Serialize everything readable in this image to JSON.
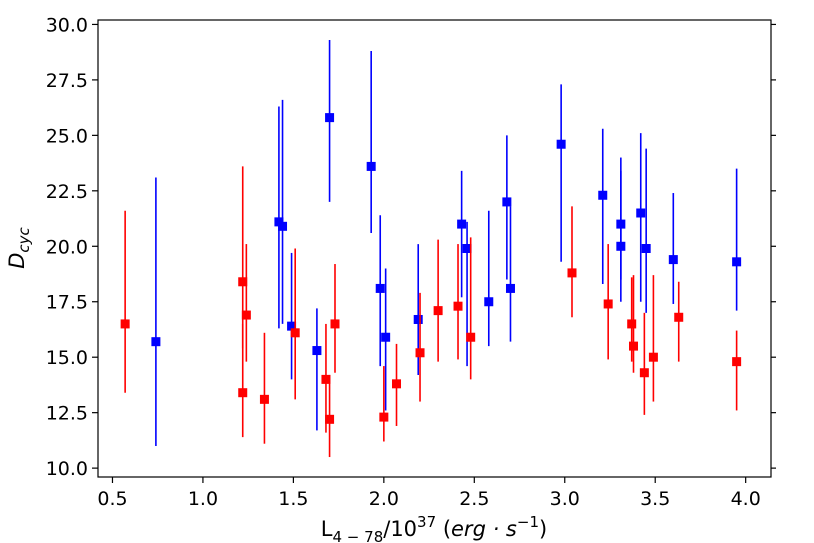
{
  "chart_data": {
    "type": "scatter",
    "xlabel": {
      "base": "L",
      "sub": "4 − 78",
      "mid": "/10",
      "sup": "37",
      "rest_open": " (",
      "italic": "erg · s",
      "sup2": "−1",
      "rest_close": ")"
    },
    "ylabel": {
      "base": "D",
      "sub": "cyc"
    },
    "xlim": [
      0.42,
      4.14
    ],
    "ylim": [
      9.6,
      30.2
    ],
    "xticks": [
      0.5,
      1.0,
      1.5,
      2.0,
      2.5,
      3.0,
      3.5,
      4.0
    ],
    "xtick_labels": [
      "0.5",
      "1.0",
      "1.5",
      "2.0",
      "2.5",
      "3.0",
      "3.5",
      "4.0"
    ],
    "yticks": [
      10.0,
      12.5,
      15.0,
      17.5,
      20.0,
      22.5,
      25.0,
      27.5,
      30.0
    ],
    "ytick_labels": [
      "10.0",
      "12.5",
      "15.0",
      "17.5",
      "20.0",
      "22.5",
      "25.0",
      "27.5",
      "30.0"
    ],
    "grid": false,
    "series": [
      {
        "color": "#0000ff",
        "points": [
          {
            "x": 0.74,
            "y": 15.7,
            "lo": 11.0,
            "hi": 23.1
          },
          {
            "x": 1.42,
            "y": 21.1,
            "lo": 16.3,
            "hi": 26.3
          },
          {
            "x": 1.44,
            "y": 20.9,
            "lo": 16.5,
            "hi": 26.6
          },
          {
            "x": 1.49,
            "y": 16.4,
            "lo": 14.0,
            "hi": 19.7
          },
          {
            "x": 1.63,
            "y": 15.3,
            "lo": 11.7,
            "hi": 17.2
          },
          {
            "x": 1.7,
            "y": 25.8,
            "lo": 22.0,
            "hi": 29.3
          },
          {
            "x": 1.93,
            "y": 23.6,
            "lo": 20.6,
            "hi": 28.8
          },
          {
            "x": 1.98,
            "y": 18.1,
            "lo": 14.6,
            "hi": 21.4
          },
          {
            "x": 2.01,
            "y": 15.9,
            "lo": 12.6,
            "hi": 19.0
          },
          {
            "x": 2.19,
            "y": 16.7,
            "lo": 14.2,
            "hi": 20.1
          },
          {
            "x": 2.43,
            "y": 21.0,
            "lo": 17.7,
            "hi": 23.4
          },
          {
            "x": 2.46,
            "y": 19.9,
            "lo": 14.6,
            "hi": 21.1
          },
          {
            "x": 2.58,
            "y": 17.5,
            "lo": 15.5,
            "hi": 21.6
          },
          {
            "x": 2.68,
            "y": 22.0,
            "lo": 18.5,
            "hi": 25.0
          },
          {
            "x": 2.7,
            "y": 18.1,
            "lo": 15.7,
            "hi": 21.8
          },
          {
            "x": 2.98,
            "y": 24.6,
            "lo": 19.3,
            "hi": 27.3
          },
          {
            "x": 3.21,
            "y": 22.3,
            "lo": 18.3,
            "hi": 25.3
          },
          {
            "x": 3.31,
            "y": 21.0,
            "lo": 18.5,
            "hi": 24.0
          },
          {
            "x": 3.31,
            "y": 20.0,
            "lo": 17.5,
            "hi": 23.4
          },
          {
            "x": 3.42,
            "y": 21.5,
            "lo": 17.5,
            "hi": 25.1
          },
          {
            "x": 3.45,
            "y": 19.9,
            "lo": 17.0,
            "hi": 24.4
          },
          {
            "x": 3.6,
            "y": 19.4,
            "lo": 17.4,
            "hi": 22.4
          },
          {
            "x": 3.95,
            "y": 19.3,
            "lo": 17.1,
            "hi": 23.5
          }
        ]
      },
      {
        "color": "#ff0000",
        "points": [
          {
            "x": 0.57,
            "y": 16.5,
            "lo": 13.4,
            "hi": 21.6
          },
          {
            "x": 1.22,
            "y": 18.4,
            "lo": 15.4,
            "hi": 23.6
          },
          {
            "x": 1.22,
            "y": 13.4,
            "lo": 11.4,
            "hi": 16.5
          },
          {
            "x": 1.24,
            "y": 16.9,
            "lo": 14.8,
            "hi": 20.1
          },
          {
            "x": 1.34,
            "y": 13.1,
            "lo": 11.1,
            "hi": 16.1
          },
          {
            "x": 1.51,
            "y": 16.1,
            "lo": 13.1,
            "hi": 19.9
          },
          {
            "x": 1.68,
            "y": 14.0,
            "lo": 11.6,
            "hi": 16.5
          },
          {
            "x": 1.7,
            "y": 12.2,
            "lo": 10.5,
            "hi": 14.2
          },
          {
            "x": 1.73,
            "y": 16.5,
            "lo": 14.3,
            "hi": 19.2
          },
          {
            "x": 2.0,
            "y": 12.3,
            "lo": 11.2,
            "hi": 14.6
          },
          {
            "x": 2.07,
            "y": 13.8,
            "lo": 11.9,
            "hi": 15.6
          },
          {
            "x": 2.2,
            "y": 15.2,
            "lo": 13.0,
            "hi": 17.9
          },
          {
            "x": 2.3,
            "y": 17.1,
            "lo": 14.8,
            "hi": 20.3
          },
          {
            "x": 2.41,
            "y": 17.3,
            "lo": 14.9,
            "hi": 20.1
          },
          {
            "x": 2.48,
            "y": 15.9,
            "lo": 14.0,
            "hi": 20.4
          },
          {
            "x": 3.04,
            "y": 18.8,
            "lo": 16.8,
            "hi": 21.8
          },
          {
            "x": 3.24,
            "y": 17.4,
            "lo": 14.9,
            "hi": 20.1
          },
          {
            "x": 3.37,
            "y": 16.5,
            "lo": 14.8,
            "hi": 18.6
          },
          {
            "x": 3.38,
            "y": 15.5,
            "lo": 14.3,
            "hi": 18.7
          },
          {
            "x": 3.44,
            "y": 14.3,
            "lo": 12.4,
            "hi": 17.0
          },
          {
            "x": 3.49,
            "y": 15.0,
            "lo": 13.0,
            "hi": 18.7
          },
          {
            "x": 3.63,
            "y": 16.8,
            "lo": 14.8,
            "hi": 18.4
          },
          {
            "x": 3.95,
            "y": 14.8,
            "lo": 12.6,
            "hi": 16.2
          }
        ]
      }
    ]
  }
}
